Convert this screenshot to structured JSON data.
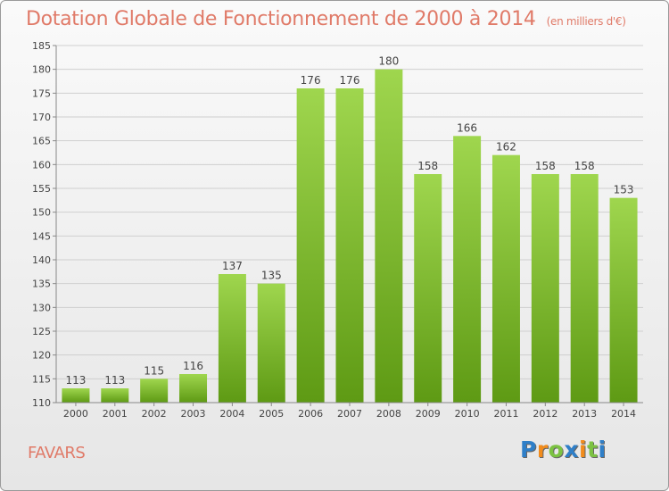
{
  "title": "Dotation Globale de Fonctionnement de 2000 à 2014",
  "subtitle": "(en milliers d'€)",
  "commune": "FAVARS",
  "logo": {
    "text": "Proxiti",
    "letters": [
      {
        "char": "P",
        "color": "#2f7fc8"
      },
      {
        "char": "r",
        "color": "#f28c1c"
      },
      {
        "char": "o",
        "color": "#7cc242"
      },
      {
        "char": "x",
        "color": "#2f7fc8"
      },
      {
        "char": "i",
        "color": "#f28c1c"
      },
      {
        "char": "t",
        "color": "#7cc242"
      },
      {
        "char": "i",
        "color": "#2f7fc8"
      }
    ]
  },
  "chart_data": {
    "type": "bar",
    "categories": [
      "2000",
      "2001",
      "2002",
      "2003",
      "2004",
      "2005",
      "2006",
      "2007",
      "2008",
      "2009",
      "2010",
      "2011",
      "2012",
      "2013",
      "2014"
    ],
    "values": [
      113,
      113,
      115,
      116,
      137,
      135,
      176,
      176,
      180,
      158,
      166,
      162,
      158,
      158,
      153
    ],
    "ylim": [
      110,
      185
    ],
    "yticks": [
      110,
      115,
      120,
      125,
      130,
      135,
      140,
      145,
      150,
      155,
      160,
      165,
      170,
      175,
      180,
      185
    ],
    "grid": true,
    "bar_color": "#7cbf35"
  }
}
